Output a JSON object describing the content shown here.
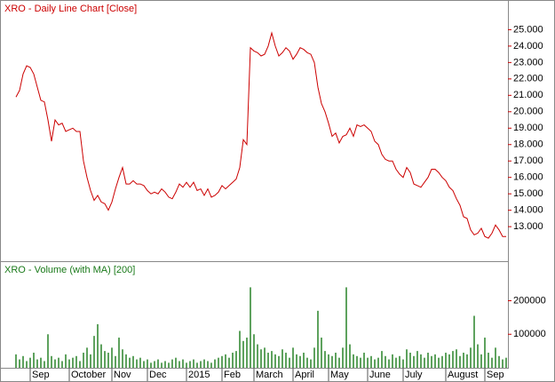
{
  "chart_data": [
    {
      "type": "line",
      "title": "XRO - Daily Line Chart [Close]",
      "color": "#cc0000",
      "xlim": [
        0,
        138
      ],
      "ylim": [
        10.95,
        26.7
      ],
      "yticks": [
        {
          "value": 13,
          "label": "13.000"
        },
        {
          "value": 14,
          "label": "14.000"
        },
        {
          "value": 15,
          "label": "15.000"
        },
        {
          "value": 16,
          "label": "16.000"
        },
        {
          "value": 17,
          "label": "17.000"
        },
        {
          "value": 18,
          "label": "18.000"
        },
        {
          "value": 19,
          "label": "19.000"
        },
        {
          "value": 20,
          "label": "20.000"
        },
        {
          "value": 21,
          "label": "21.000"
        },
        {
          "value": 22,
          "label": "22.000"
        },
        {
          "value": 23,
          "label": "23.000"
        },
        {
          "value": 24,
          "label": "24.000"
        },
        {
          "value": 25,
          "label": "25.000"
        }
      ],
      "values": [
        20.9,
        21.3,
        22.3,
        22.8,
        22.7,
        22.3,
        21.5,
        20.7,
        20.6,
        19.5,
        18.2,
        19.5,
        19.2,
        19.3,
        18.8,
        18.9,
        19.0,
        18.8,
        18.8,
        17.0,
        16.0,
        15.2,
        14.6,
        14.9,
        14.5,
        14.4,
        14.0,
        14.5,
        15.3,
        16.0,
        16.6,
        15.6,
        15.6,
        15.8,
        15.6,
        15.6,
        15.5,
        15.2,
        15.0,
        15.1,
        15.0,
        15.3,
        15.1,
        14.8,
        14.7,
        15.1,
        15.6,
        15.4,
        15.7,
        15.4,
        15.7,
        15.2,
        15.3,
        14.9,
        15.3,
        14.8,
        14.9,
        15.1,
        15.5,
        15.3,
        15.5,
        15.7,
        15.9,
        16.6,
        18.3,
        18.0,
        23.9,
        23.7,
        23.6,
        23.4,
        23.5,
        24.0,
        24.8,
        24.0,
        23.4,
        23.6,
        23.9,
        23.7,
        23.2,
        23.5,
        23.9,
        23.8,
        23.6,
        23.5,
        23.0,
        21.5,
        20.5,
        20.0,
        19.3,
        18.5,
        18.7,
        18.1,
        18.5,
        18.6,
        19.0,
        18.5,
        19.2,
        19.1,
        19.2,
        19.0,
        18.8,
        18.2,
        18.0,
        17.4,
        17.1,
        17.0,
        17.0,
        16.5,
        16.2,
        16.0,
        16.6,
        16.3,
        15.6,
        15.5,
        15.4,
        15.7,
        16.0,
        16.5,
        16.5,
        16.3,
        16.0,
        15.8,
        15.4,
        15.2,
        14.7,
        14.3,
        13.6,
        13.5,
        12.8,
        12.5,
        12.6,
        12.9,
        12.4,
        12.3,
        12.6,
        13.1,
        12.8,
        12.4,
        12.4
      ]
    },
    {
      "type": "bar",
      "title": "XRO - Volume (with MA) [200]",
      "color": "#1a7a1a",
      "xlim": [
        0,
        138
      ],
      "ylim": [
        0,
        310000
      ],
      "yticks": [
        100000,
        200000
      ],
      "xticks": [
        {
          "value": 4,
          "label": "Sep"
        },
        {
          "value": 15,
          "label": "October"
        },
        {
          "value": 27,
          "label": "Nov"
        },
        {
          "value": 37,
          "label": "Dec"
        },
        {
          "value": 48,
          "label": "2015"
        },
        {
          "value": 58,
          "label": "Feb"
        },
        {
          "value": 67,
          "label": "March"
        },
        {
          "value": 78,
          "label": "April"
        },
        {
          "value": 88,
          "label": "May"
        },
        {
          "value": 99,
          "label": "June"
        },
        {
          "value": 109,
          "label": "July"
        },
        {
          "value": 121,
          "label": "August"
        },
        {
          "value": 132,
          "label": "Sep"
        }
      ],
      "values": [
        40000,
        25000,
        35000,
        20000,
        30000,
        45000,
        25000,
        30000,
        20000,
        100000,
        35000,
        25000,
        30000,
        20000,
        40000,
        25000,
        30000,
        35000,
        20000,
        45000,
        60000,
        40000,
        95000,
        130000,
        70000,
        50000,
        45000,
        60000,
        35000,
        90000,
        55000,
        40000,
        30000,
        35000,
        25000,
        30000,
        20000,
        25000,
        15000,
        20000,
        25000,
        15000,
        20000,
        15000,
        25000,
        30000,
        20000,
        25000,
        15000,
        20000,
        25000,
        15000,
        20000,
        25000,
        20000,
        15000,
        25000,
        30000,
        35000,
        40000,
        30000,
        45000,
        50000,
        110000,
        80000,
        90000,
        240000,
        100000,
        70000,
        55000,
        60000,
        45000,
        50000,
        40000,
        35000,
        55000,
        45000,
        30000,
        60000,
        40000,
        35000,
        45000,
        30000,
        25000,
        60000,
        170000,
        90000,
        50000,
        40000,
        35000,
        45000,
        30000,
        60000,
        240000,
        70000,
        40000,
        35000,
        30000,
        45000,
        30000,
        35000,
        25000,
        30000,
        50000,
        35000,
        25000,
        40000,
        30000,
        35000,
        25000,
        55000,
        45000,
        35000,
        50000,
        40000,
        30000,
        45000,
        35000,
        40000,
        30000,
        35000,
        45000,
        40000,
        50000,
        55000,
        35000,
        45000,
        40000,
        60000,
        155000,
        70000,
        40000,
        90000,
        45000,
        30000,
        60000,
        35000,
        25000,
        30000
      ]
    }
  ]
}
